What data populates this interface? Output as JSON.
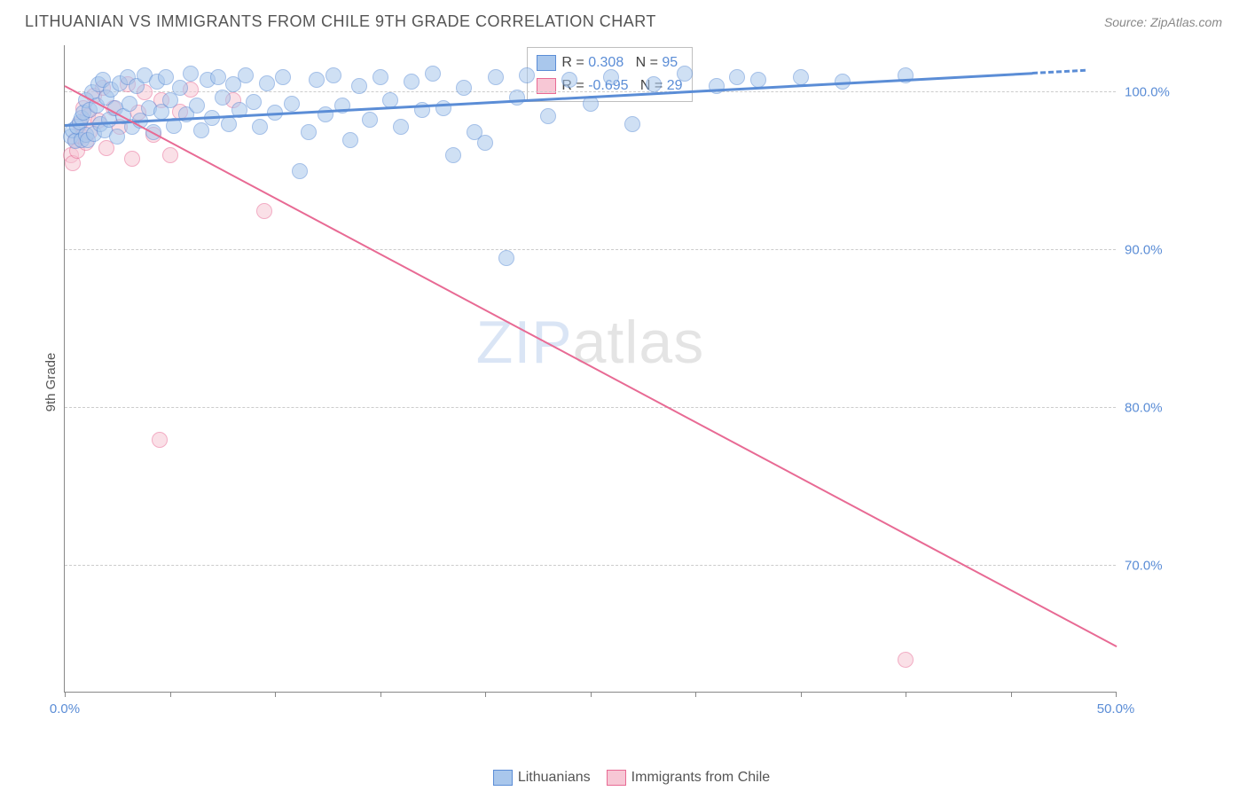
{
  "title": "LITHUANIAN VS IMMIGRANTS FROM CHILE 9TH GRADE CORRELATION CHART",
  "source": "Source: ZipAtlas.com",
  "watermark_a": "ZIP",
  "watermark_b": "atlas",
  "y_axis_label": "9th Grade",
  "chart": {
    "type": "scatter",
    "background_color": "#ffffff",
    "grid_color": "#cccccc",
    "axis_color": "#888888",
    "text_color": "#555555",
    "tick_label_color": "#5b8dd6",
    "label_fontsize": 15,
    "title_fontsize": 18,
    "xlim": [
      0,
      50
    ],
    "ylim": [
      62,
      103
    ],
    "y_ticks": [
      70,
      80,
      90,
      100
    ],
    "y_tick_labels": [
      "70.0%",
      "80.0%",
      "90.0%",
      "100.0%"
    ],
    "x_major_ticks": [
      0,
      10,
      20,
      30,
      40,
      50
    ],
    "x_minor_ticks": [
      5,
      15,
      25,
      35,
      45
    ],
    "x_tick_labels": {
      "0": "0.0%",
      "50": "50.0%"
    },
    "marker_radius": 9,
    "marker_opacity": 0.55,
    "series": [
      {
        "name": "Lithuanians",
        "color_fill": "#a9c7ec",
        "color_stroke": "#5b8dd6",
        "r": "0.308",
        "n": "95",
        "trend": {
          "x1": 0,
          "y1": 98.0,
          "x2": 46,
          "y2": 101.3,
          "width": 3,
          "dashed_tail": true
        },
        "points": [
          [
            0.3,
            97.2
          ],
          [
            0.4,
            97.6
          ],
          [
            0.5,
            96.9
          ],
          [
            0.6,
            97.8
          ],
          [
            0.7,
            98.1
          ],
          [
            0.8,
            98.4
          ],
          [
            0.8,
            97.0
          ],
          [
            0.9,
            98.7
          ],
          [
            1.0,
            97.3
          ],
          [
            1.0,
            99.5
          ],
          [
            1.1,
            97.0
          ],
          [
            1.2,
            98.9
          ],
          [
            1.3,
            100.0
          ],
          [
            1.4,
            97.4
          ],
          [
            1.5,
            99.2
          ],
          [
            1.6,
            100.5
          ],
          [
            1.7,
            98.0
          ],
          [
            1.8,
            100.8
          ],
          [
            1.9,
            97.6
          ],
          [
            2.0,
            99.7
          ],
          [
            2.1,
            98.3
          ],
          [
            2.2,
            100.2
          ],
          [
            2.4,
            99.0
          ],
          [
            2.5,
            97.2
          ],
          [
            2.6,
            100.6
          ],
          [
            2.8,
            98.5
          ],
          [
            3.0,
            101.0
          ],
          [
            3.1,
            99.3
          ],
          [
            3.2,
            97.8
          ],
          [
            3.4,
            100.4
          ],
          [
            3.6,
            98.2
          ],
          [
            3.8,
            101.1
          ],
          [
            4.0,
            99.0
          ],
          [
            4.2,
            97.5
          ],
          [
            4.4,
            100.7
          ],
          [
            4.6,
            98.8
          ],
          [
            4.8,
            101.0
          ],
          [
            5.0,
            99.5
          ],
          [
            5.2,
            97.9
          ],
          [
            5.5,
            100.3
          ],
          [
            5.8,
            98.6
          ],
          [
            6.0,
            101.2
          ],
          [
            6.3,
            99.2
          ],
          [
            6.5,
            97.6
          ],
          [
            6.8,
            100.8
          ],
          [
            7.0,
            98.4
          ],
          [
            7.3,
            101.0
          ],
          [
            7.5,
            99.7
          ],
          [
            7.8,
            98.0
          ],
          [
            8.0,
            100.5
          ],
          [
            8.3,
            98.9
          ],
          [
            8.6,
            101.1
          ],
          [
            9.0,
            99.4
          ],
          [
            9.3,
            97.8
          ],
          [
            9.6,
            100.6
          ],
          [
            10.0,
            98.7
          ],
          [
            10.4,
            101.0
          ],
          [
            10.8,
            99.3
          ],
          [
            11.2,
            95.0
          ],
          [
            11.6,
            97.5
          ],
          [
            12.0,
            100.8
          ],
          [
            12.4,
            98.6
          ],
          [
            12.8,
            101.1
          ],
          [
            13.2,
            99.2
          ],
          [
            13.6,
            97.0
          ],
          [
            14.0,
            100.4
          ],
          [
            14.5,
            98.3
          ],
          [
            15.0,
            101.0
          ],
          [
            15.5,
            99.5
          ],
          [
            16.0,
            97.8
          ],
          [
            16.5,
            100.7
          ],
          [
            17.0,
            98.9
          ],
          [
            17.5,
            101.2
          ],
          [
            18.0,
            99.0
          ],
          [
            18.5,
            96.0
          ],
          [
            19.0,
            100.3
          ],
          [
            19.5,
            97.5
          ],
          [
            20.0,
            96.8
          ],
          [
            20.5,
            101.0
          ],
          [
            21.0,
            89.5
          ],
          [
            21.5,
            99.7
          ],
          [
            22.0,
            101.1
          ],
          [
            23.0,
            98.5
          ],
          [
            24.0,
            100.8
          ],
          [
            25.0,
            99.3
          ],
          [
            26.0,
            101.0
          ],
          [
            27.0,
            98.0
          ],
          [
            28.0,
            100.5
          ],
          [
            29.5,
            101.2
          ],
          [
            31.0,
            100.4
          ],
          [
            32.0,
            101.0
          ],
          [
            33.0,
            100.8
          ],
          [
            35.0,
            101.0
          ],
          [
            37.0,
            100.7
          ],
          [
            40.0,
            101.1
          ]
        ]
      },
      {
        "name": "Immigrants from Chile",
        "color_fill": "#f7c7d5",
        "color_stroke": "#e86a94",
        "r": "-0.695",
        "n": "29",
        "trend": {
          "x1": 0,
          "y1": 100.5,
          "x2": 50,
          "y2": 65.0,
          "width": 2,
          "dashed_tail": false
        },
        "points": [
          [
            0.3,
            96.0
          ],
          [
            0.4,
            95.5
          ],
          [
            0.5,
            97.0
          ],
          [
            0.6,
            96.3
          ],
          [
            0.7,
            98.0
          ],
          [
            0.8,
            97.2
          ],
          [
            0.9,
            99.0
          ],
          [
            1.0,
            96.8
          ],
          [
            1.1,
            98.5
          ],
          [
            1.2,
            97.5
          ],
          [
            1.4,
            99.8
          ],
          [
            1.6,
            98.2
          ],
          [
            1.8,
            100.3
          ],
          [
            2.0,
            96.5
          ],
          [
            2.3,
            99.0
          ],
          [
            2.6,
            97.8
          ],
          [
            3.0,
            100.5
          ],
          [
            3.2,
            95.8
          ],
          [
            3.5,
            98.7
          ],
          [
            3.8,
            100.0
          ],
          [
            4.2,
            97.3
          ],
          [
            4.6,
            99.5
          ],
          [
            5.0,
            96.0
          ],
          [
            5.5,
            98.8
          ],
          [
            6.0,
            100.2
          ],
          [
            8.0,
            99.5
          ],
          [
            9.5,
            92.5
          ],
          [
            4.5,
            78.0
          ],
          [
            40.0,
            64.0
          ]
        ]
      }
    ]
  },
  "legend_box": {
    "r_label": "R = ",
    "n_label": "N = "
  },
  "bottom_legend": {
    "items": [
      "Lithuanians",
      "Immigrants from Chile"
    ]
  }
}
